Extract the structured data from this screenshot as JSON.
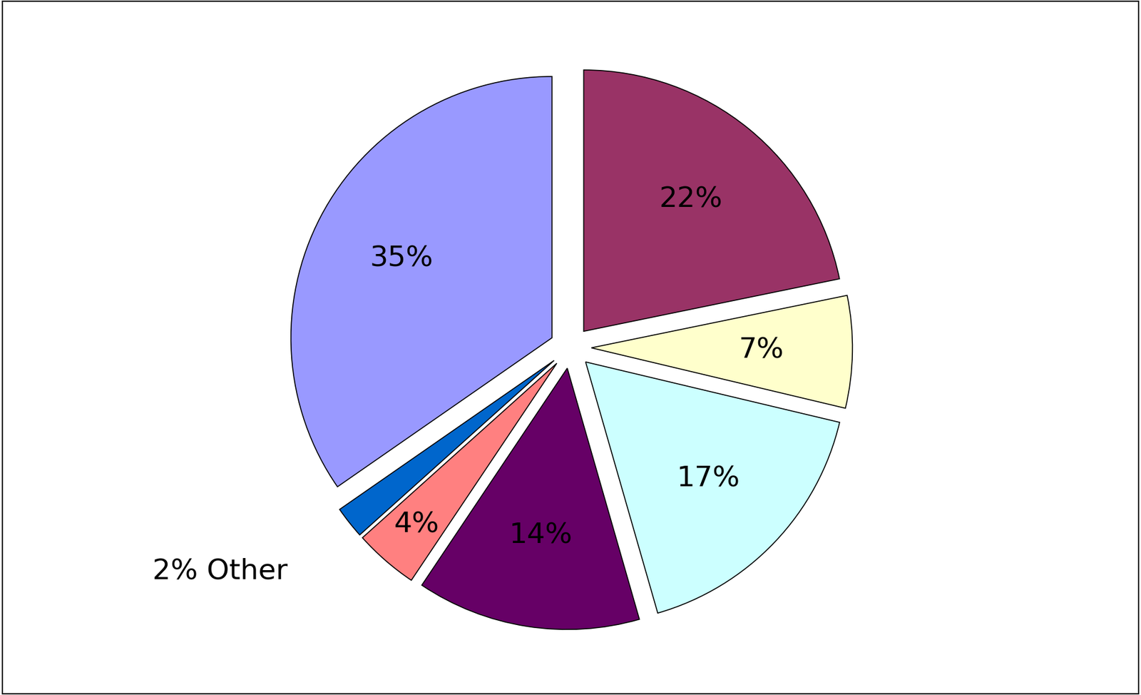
{
  "chart_data": {
    "type": "pie",
    "values": [
      22,
      7,
      17,
      14,
      4,
      2,
      35
    ],
    "value_labels": [
      "22%",
      "7%",
      "17%",
      "14%",
      "4%",
      "2% Other",
      "35%"
    ],
    "colors": [
      "#993366",
      "#ffffcc",
      "#ccffff",
      "#660066",
      "#ff8080",
      "#0066cc",
      "#9999ff"
    ],
    "data_labels": true
  }
}
